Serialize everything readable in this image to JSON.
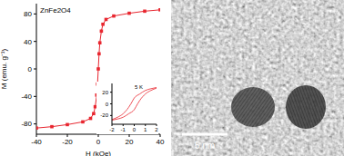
{
  "chart_data": [
    {
      "type": "line",
      "title": "ZnFe2O4",
      "xlabel": "H (kOe)",
      "ylabel": "M (emu. g⁻¹)",
      "x": [
        -40,
        -30,
        -20,
        -10,
        -5,
        -3,
        -2,
        -1,
        -0.5,
        0,
        0.5,
        1,
        2,
        3,
        5,
        10,
        20,
        30,
        40
      ],
      "values": [
        -86,
        -84,
        -81,
        -77,
        -72,
        -65,
        -55,
        -38,
        -22,
        0,
        22,
        38,
        55,
        65,
        72,
        77,
        81,
        84,
        86
      ],
      "color": "#e8262f",
      "marker": "square",
      "xlim": [
        -40,
        40
      ],
      "xticks": [
        -40,
        -20,
        0,
        20,
        40
      ],
      "ylim": [
        -95,
        95
      ],
      "yticks": [
        -80,
        -40,
        0,
        40,
        80
      ]
    },
    {
      "type": "line",
      "title": "5 K",
      "series": [
        {
          "color": "#e8262f",
          "x": [
            2,
            1.5,
            1,
            0.5,
            0,
            -0.3,
            -0.5,
            -1,
            -1.5,
            -2
          ],
          "values": [
            28,
            26,
            23,
            17,
            10,
            0,
            -6,
            -17,
            -23,
            -27
          ]
        },
        {
          "color": "#e8262f",
          "x": [
            -2,
            -1.5,
            -1,
            -0.5,
            0,
            0.3,
            0.5,
            1,
            1.5,
            2
          ],
          "values": [
            -28,
            -26,
            -23,
            -17,
            -10,
            0,
            6,
            17,
            23,
            27
          ]
        }
      ],
      "xlim": [
        -2,
        2
      ],
      "xticks": [
        -2,
        -1,
        0,
        1,
        2
      ],
      "ylim": [
        -35,
        35
      ],
      "yticks": [
        -20,
        0,
        20
      ]
    }
  ],
  "image": {
    "scale_bar": "5 nm"
  }
}
